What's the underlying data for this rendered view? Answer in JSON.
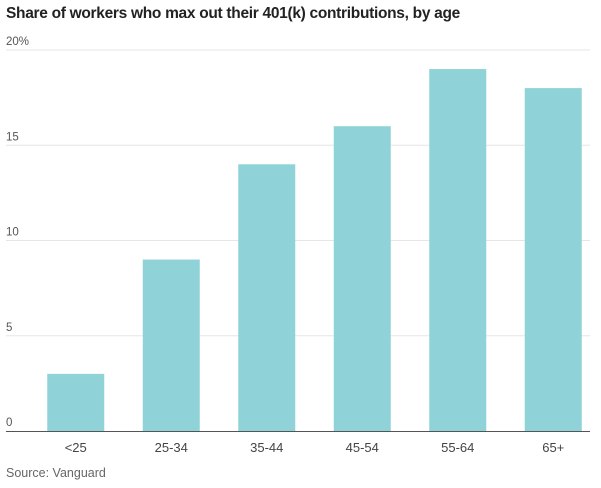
{
  "chart_data": {
    "type": "bar",
    "title": "Share of workers who max out their 401(k) contributions, by age",
    "categories": [
      "<25",
      "25-34",
      "35-44",
      "45-54",
      "55-64",
      "65+"
    ],
    "values": [
      3,
      9,
      14,
      16,
      19,
      18
    ],
    "ylim": [
      0,
      20
    ],
    "yticks": [
      0,
      5,
      10,
      15,
      20
    ],
    "ytick_labels": [
      "0",
      "5",
      "10",
      "15",
      "20%"
    ],
    "grid": true,
    "bar_color": "#8fd3d8",
    "source": "Source: Vanguard"
  }
}
